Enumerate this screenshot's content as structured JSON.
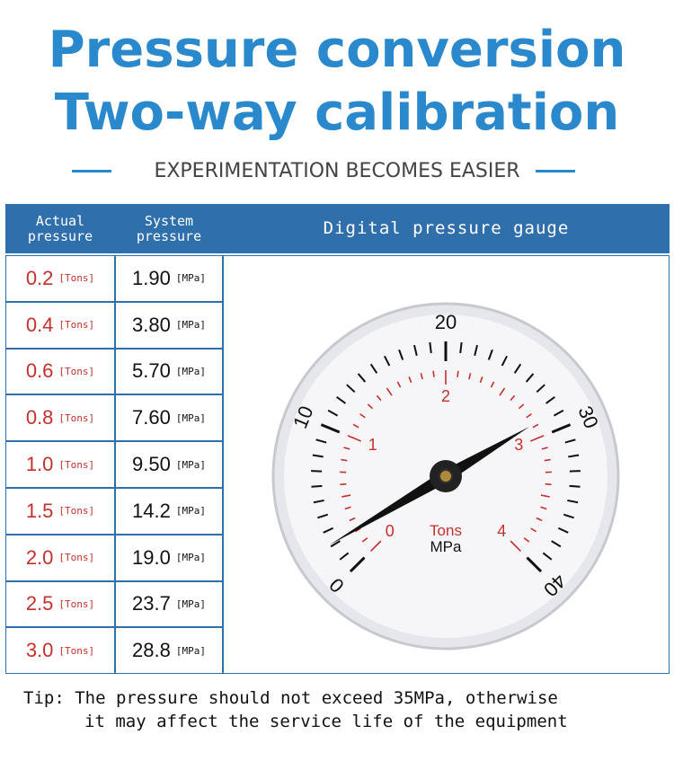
{
  "header": {
    "title_line1": "Pressure conversion",
    "title_line2": "Two-way calibration",
    "subtitle": "EXPERIMENTATION BECOMES EASIER"
  },
  "table": {
    "columns": [
      "Actual pressure",
      "System pressure",
      "Digital pressure gauge"
    ],
    "rows": [
      [
        "0.2",
        "[Tons]",
        "1.90",
        "[MPa]"
      ],
      [
        "0.4",
        "[Tons]",
        "3.80",
        "[MPa]"
      ],
      [
        "0.6",
        "[Tons]",
        "5.70",
        "[MPa]"
      ],
      [
        "0.8",
        "[Tons]",
        "7.60",
        "[MPa]"
      ],
      [
        "1.0",
        "[Tons]",
        "9.50",
        "[MPa]"
      ],
      [
        "1.5",
        "[Tons]",
        "14.2",
        "[MPa]"
      ],
      [
        "2.0",
        "[Tons]",
        "19.0",
        "[MPa]"
      ],
      [
        "2.5",
        "[Tons]",
        "23.7",
        "[MPa]"
      ],
      [
        "3.0",
        "[Tons]",
        "28.8",
        "[MPa]"
      ]
    ]
  },
  "gauge": {
    "outer_labels": [
      "0",
      "10",
      "20",
      "30",
      "40"
    ],
    "inner_labels": [
      "0",
      "1",
      "2",
      "3",
      "4"
    ],
    "unit_inner": "Tons",
    "unit_outer": "MPa"
  },
  "tip": {
    "line1": "Tip: The pressure should not exceed 35MPa, otherwise",
    "line2": "it may affect the service life of the equipment"
  }
}
